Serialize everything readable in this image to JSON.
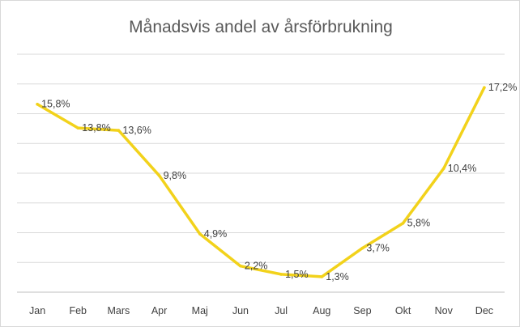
{
  "chart_data": {
    "type": "line",
    "title": "Månadsvis andel av årsförbrukning",
    "xlabel": "",
    "ylabel": "",
    "categories": [
      "Jan",
      "Feb",
      "Mars",
      "Apr",
      "Maj",
      "Jun",
      "Jul",
      "Aug",
      "Sep",
      "Okt",
      "Nov",
      "Dec"
    ],
    "values": [
      15.8,
      13.8,
      13.6,
      9.8,
      4.9,
      2.2,
      1.5,
      1.3,
      3.7,
      5.8,
      10.4,
      17.2
    ],
    "value_labels": [
      "15,8%",
      "13,8%",
      "13,6%",
      "9,8%",
      "4,9%",
      "2,2%",
      "1,5%",
      "1,3%",
      "3,7%",
      "5,8%",
      "10,4%",
      "17,2%"
    ],
    "ylim": [
      0,
      20
    ],
    "grid": true,
    "legend": false,
    "line_color": "#F2D21B"
  }
}
